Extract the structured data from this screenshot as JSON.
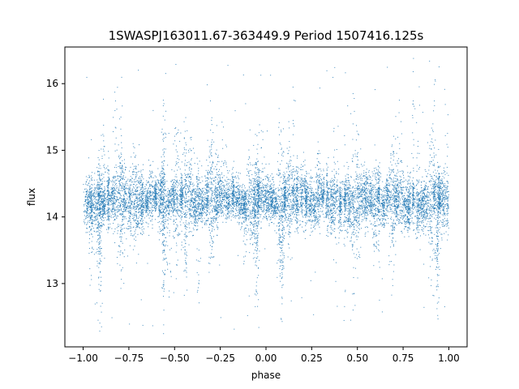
{
  "chart_data": {
    "type": "scatter",
    "title": "1SWASPJ163011.67-363449.9 Period 1507416.125s",
    "xlabel": "phase",
    "ylabel": "flux",
    "xlim": [
      -1.1,
      1.1
    ],
    "ylim": [
      12.05,
      16.55
    ],
    "xticks": [
      "−1.00",
      "−0.75",
      "−0.50",
      "−0.25",
      "0.00",
      "0.25",
      "0.50",
      "0.75",
      "1.00"
    ],
    "yticks": [
      "13",
      "14",
      "15",
      "16"
    ],
    "grid": false,
    "legend": "none",
    "point_color": "#1f77b4",
    "approx_point_count": 12000,
    "point_density_note_baseline_flux": 14.25,
    "series": [
      {
        "values_sample": [
          [
            -0.98,
            14.3
          ],
          [
            -0.95,
            14.1
          ],
          [
            -0.91,
            13.6
          ],
          [
            -0.88,
            14.4
          ],
          [
            -0.82,
            14.2
          ],
          [
            -0.78,
            14.6
          ],
          [
            -0.73,
            14.3
          ],
          [
            -0.7,
            15.0
          ],
          [
            -0.65,
            14.4
          ],
          [
            -0.6,
            14.3
          ],
          [
            -0.55,
            14.2
          ],
          [
            -0.48,
            14.5
          ],
          [
            -0.42,
            14.2
          ],
          [
            -0.38,
            14.9
          ],
          [
            -0.32,
            14.3
          ],
          [
            -0.27,
            14.4
          ],
          [
            -0.22,
            14.1
          ],
          [
            -0.17,
            14.3
          ],
          [
            -0.12,
            14.0
          ],
          [
            -0.08,
            14.8
          ],
          [
            -0.05,
            13.4
          ],
          [
            -0.02,
            14.2
          ],
          [
            0.02,
            14.1
          ],
          [
            0.05,
            14.3
          ],
          [
            0.09,
            13.7
          ],
          [
            0.12,
            14.2
          ],
          [
            0.17,
            14.4
          ],
          [
            0.22,
            14.3
          ],
          [
            0.27,
            14.5
          ],
          [
            0.3,
            15.1
          ],
          [
            0.35,
            14.3
          ],
          [
            0.4,
            14.2
          ],
          [
            0.45,
            14.4
          ],
          [
            0.5,
            14.3
          ],
          [
            0.55,
            14.1
          ],
          [
            0.6,
            14.6
          ],
          [
            0.65,
            14.3
          ],
          [
            0.7,
            14.4
          ],
          [
            0.75,
            14.2
          ],
          [
            0.8,
            14.3
          ],
          [
            0.85,
            14.1
          ],
          [
            0.9,
            14.4
          ],
          [
            0.94,
            13.5
          ],
          [
            0.97,
            14.2
          ],
          [
            1.0,
            14.1
          ]
        ]
      }
    ]
  }
}
